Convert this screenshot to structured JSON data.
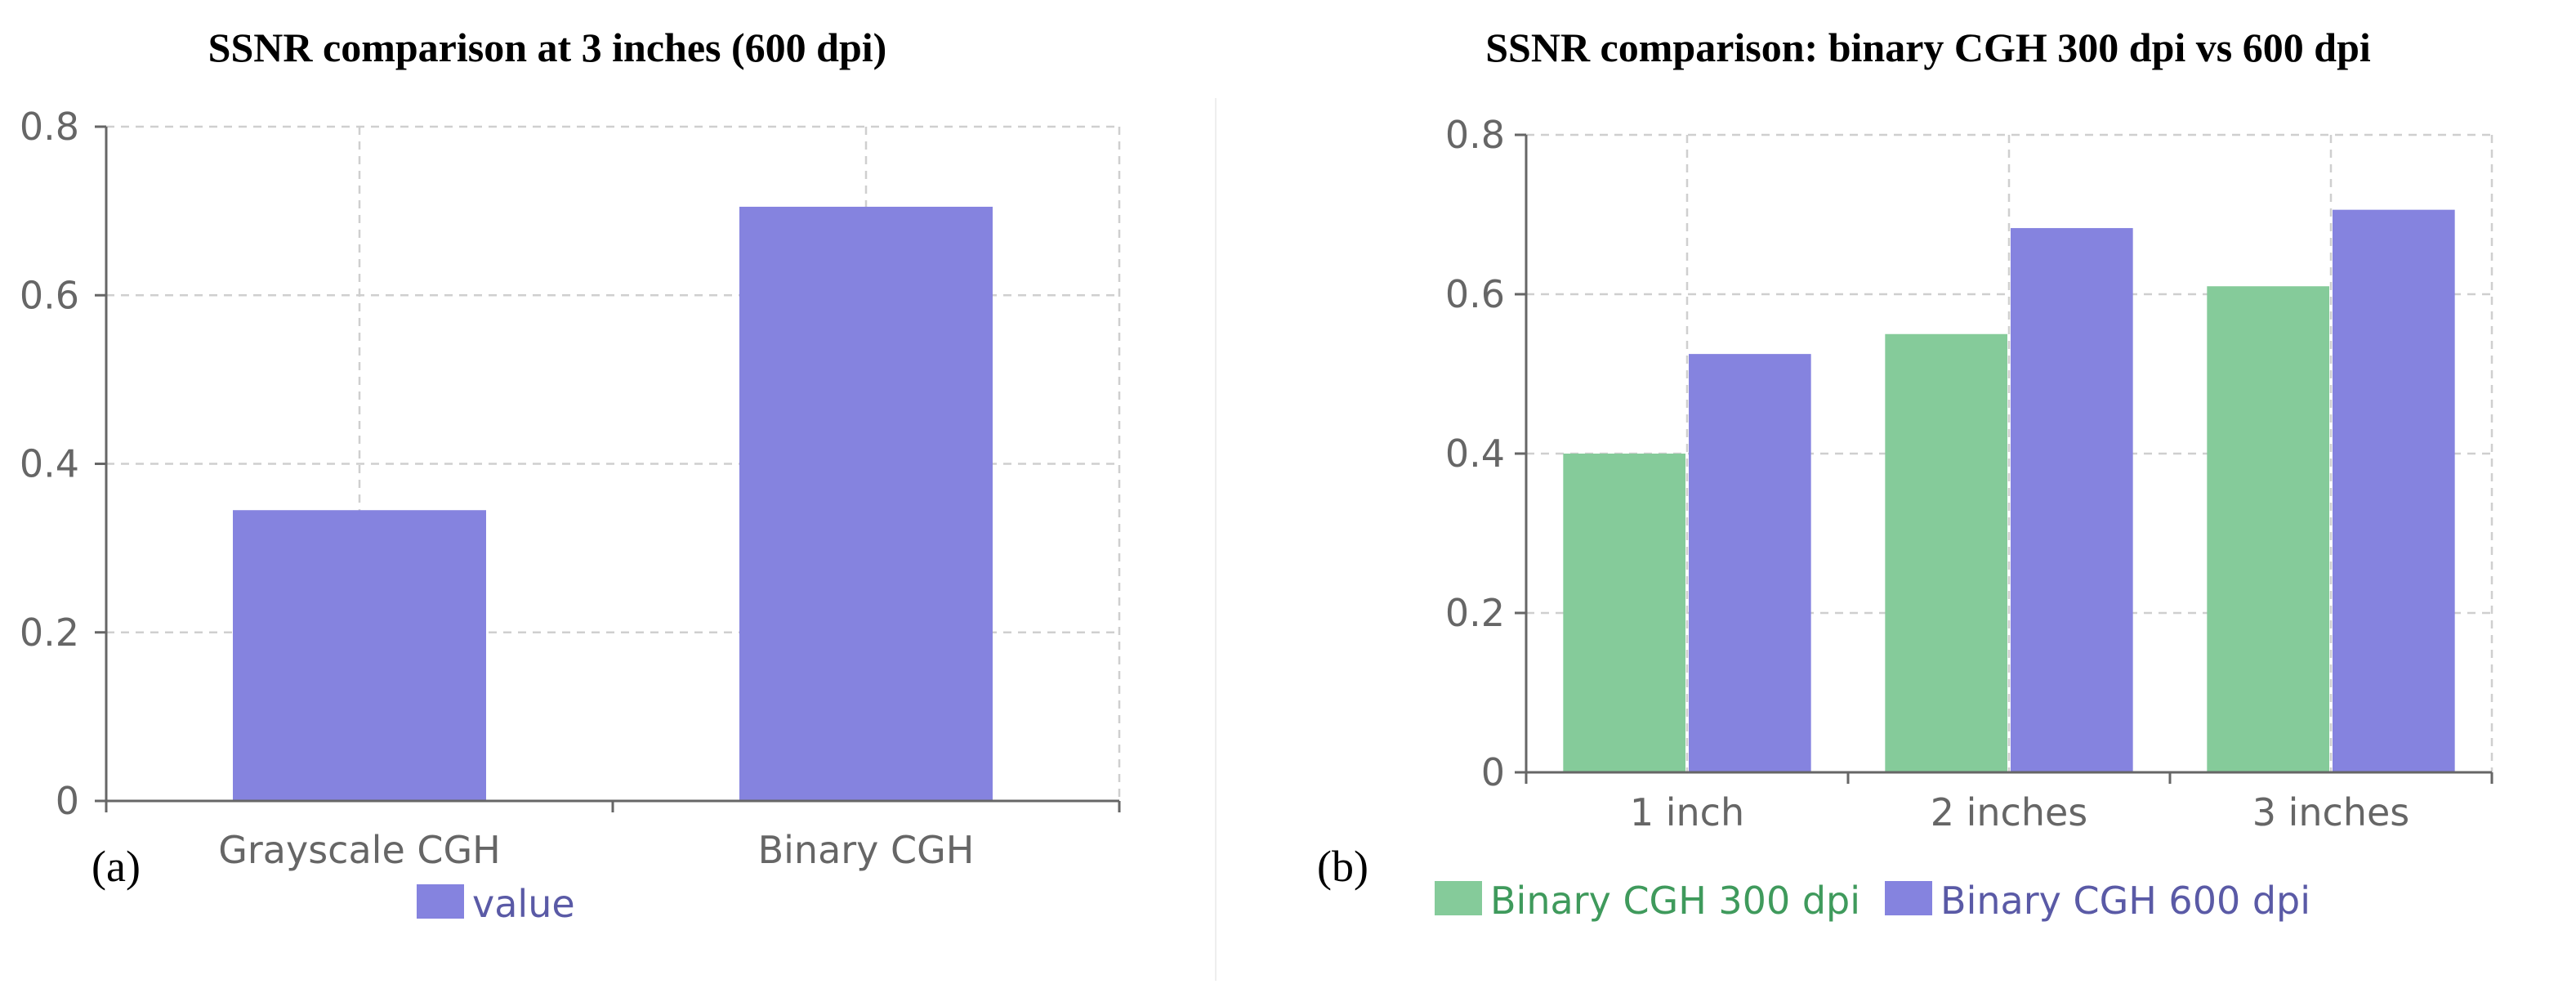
{
  "chart_data": [
    {
      "type": "bar",
      "panel": "(a)",
      "title": "SSNR comparison at 3 inches (600 dpi)",
      "categories": [
        "Grayscale CGH",
        "Binary CGH"
      ],
      "series": [
        {
          "name": "value",
          "values": [
            0.345,
            0.705
          ],
          "color": "#8583df"
        }
      ],
      "yticks": [
        0,
        0.2,
        0.4,
        0.6,
        0.8
      ],
      "ytick_labels": [
        "0",
        "0.2",
        "0.4",
        "0.6",
        "0.8"
      ],
      "ylim": [
        0,
        0.8
      ],
      "xlabel": "",
      "ylabel": "",
      "grid": true,
      "legend_position": "bottom-center"
    },
    {
      "type": "bar",
      "panel": "(b)",
      "title": "SSNR comparison: binary CGH 300 dpi vs 600 dpi",
      "categories": [
        "1 inch",
        "2 inches",
        "3 inches"
      ],
      "series": [
        {
          "name": "Binary CGH 300 dpi",
          "values": [
            0.4,
            0.55,
            0.61
          ],
          "color": "#85cb9a"
        },
        {
          "name": "Binary CGH 600 dpi",
          "values": [
            0.525,
            0.683,
            0.706
          ],
          "color": "#8583df"
        }
      ],
      "yticks": [
        0,
        0.2,
        0.4,
        0.6,
        0.8
      ],
      "ytick_labels": [
        "0",
        "0.2",
        "0.4",
        "0.6",
        "0.8"
      ],
      "ylim": [
        0,
        0.8
      ],
      "xlabel": "",
      "ylabel": "",
      "grid": true,
      "legend_position": "bottom-left"
    }
  ]
}
